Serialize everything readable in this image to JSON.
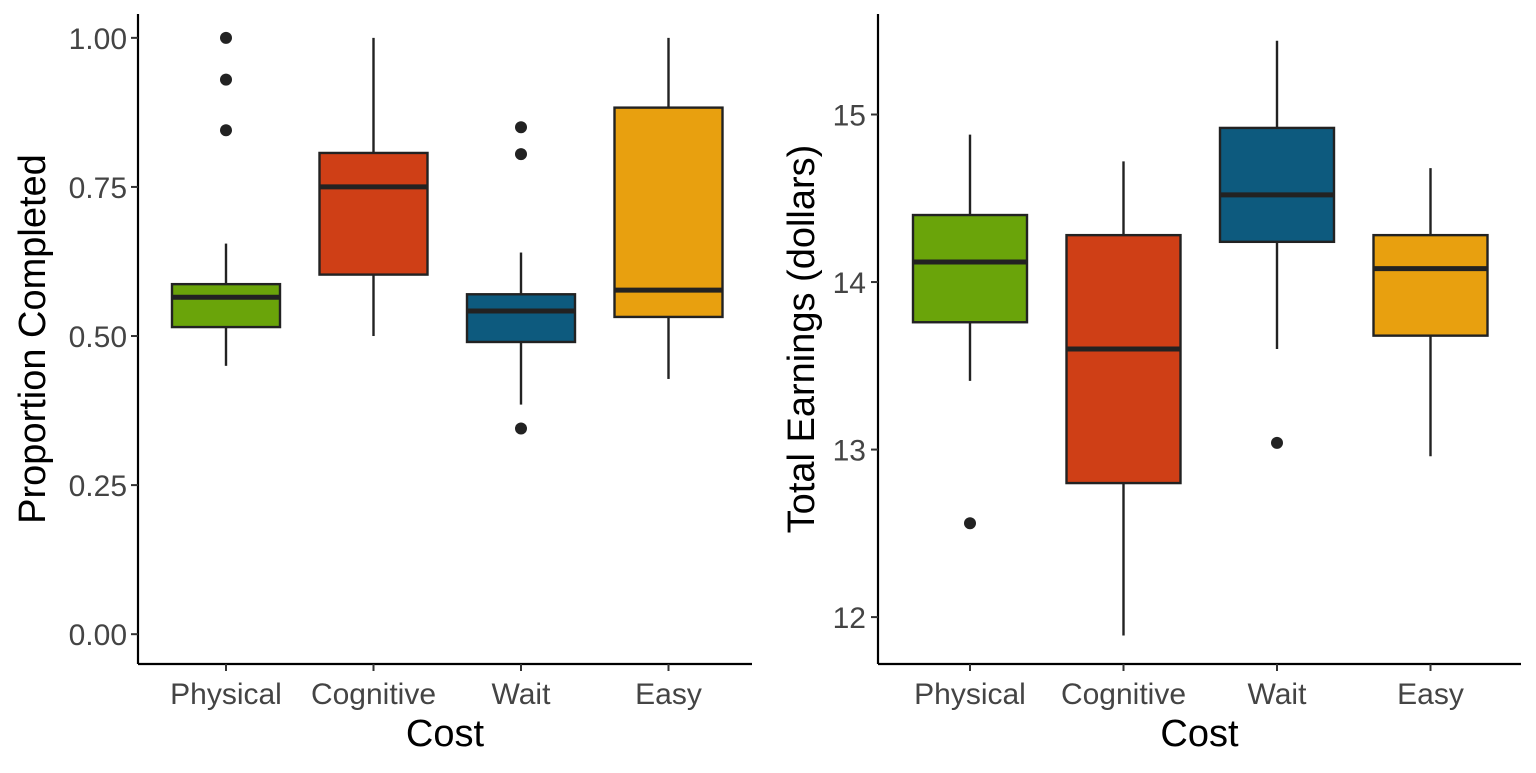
{
  "chart_data": [
    {
      "type": "boxplot",
      "xlabel": "Cost",
      "ylabel": "Proportion Completed",
      "categories": [
        "Physical",
        "Cognitive",
        "Wait",
        "Easy"
      ],
      "ylim": [
        -0.05,
        1.04
      ],
      "y_ticks": [
        0.0,
        0.25,
        0.5,
        0.75,
        1.0
      ],
      "y_tick_labels": [
        "0.00",
        "0.25",
        "0.50",
        "0.75",
        "1.00"
      ],
      "grid": false,
      "legend": "none",
      "boxes": [
        {
          "category": "Physical",
          "color": "#6aa40a",
          "min": 0.45,
          "q1": 0.515,
          "median": 0.565,
          "q3": 0.587,
          "max": 0.655,
          "outliers": [
            0.845,
            0.93,
            1.0
          ]
        },
        {
          "category": "Cognitive",
          "color": "#cf3f16",
          "min": 0.5,
          "q1": 0.603,
          "median": 0.75,
          "q3": 0.807,
          "max": 1.0,
          "outliers": []
        },
        {
          "category": "Wait",
          "color": "#0d5a7e",
          "min": 0.385,
          "q1": 0.49,
          "median": 0.542,
          "q3": 0.57,
          "max": 0.64,
          "outliers": [
            0.345,
            0.805,
            0.85
          ]
        },
        {
          "category": "Easy",
          "color": "#e8a00f",
          "min": 0.428,
          "q1": 0.532,
          "median": 0.577,
          "q3": 0.883,
          "max": 1.0,
          "outliers": []
        }
      ]
    },
    {
      "type": "boxplot",
      "xlabel": "Cost",
      "ylabel": "Total Earnings (dollars)",
      "categories": [
        "Physical",
        "Cognitive",
        "Wait",
        "Easy"
      ],
      "ylim": [
        11.72,
        15.6
      ],
      "y_ticks": [
        12,
        13,
        14,
        15
      ],
      "y_tick_labels": [
        "12",
        "13",
        "14",
        "15"
      ],
      "grid": false,
      "legend": "none",
      "boxes": [
        {
          "category": "Physical",
          "color": "#6aa40a",
          "min": 13.41,
          "q1": 13.76,
          "median": 14.12,
          "q3": 14.4,
          "max": 14.88,
          "outliers": [
            12.56
          ]
        },
        {
          "category": "Cognitive",
          "color": "#cf3f16",
          "min": 11.89,
          "q1": 12.8,
          "median": 13.6,
          "q3": 14.28,
          "max": 14.72,
          "outliers": []
        },
        {
          "category": "Wait",
          "color": "#0d5a7e",
          "min": 13.6,
          "q1": 14.24,
          "median": 14.52,
          "q3": 14.92,
          "max": 15.44,
          "outliers": [
            13.04
          ]
        },
        {
          "category": "Easy",
          "color": "#e8a00f",
          "min": 12.96,
          "q1": 13.68,
          "median": 14.08,
          "q3": 14.28,
          "max": 14.68,
          "outliers": []
        }
      ]
    }
  ]
}
